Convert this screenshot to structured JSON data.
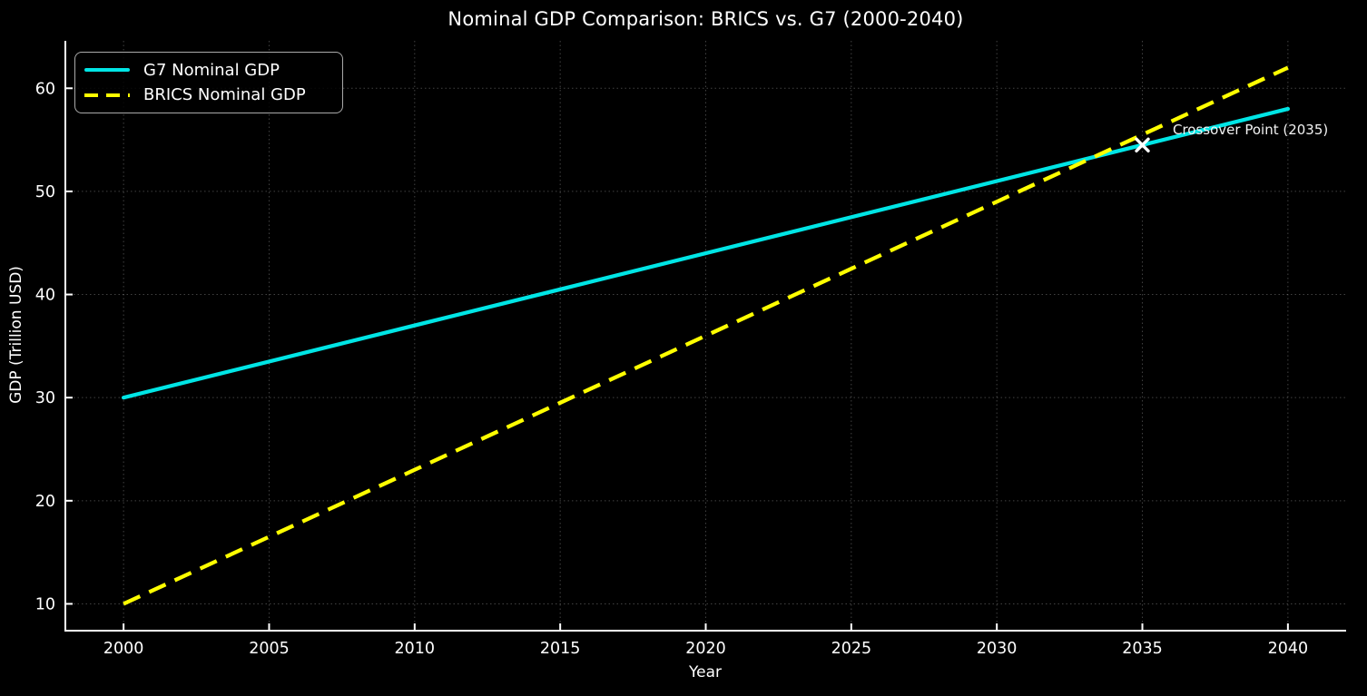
{
  "figure": {
    "background": "#000000",
    "text_color": "#ffffff"
  },
  "chart_data": {
    "type": "line",
    "title": "Nominal GDP Comparison: BRICS vs. G7 (2000-2040)",
    "xlabel": "Year",
    "ylabel": "GDP (Trillion USD)",
    "x": [
      2000,
      2005,
      2010,
      2015,
      2020,
      2025,
      2030,
      2035,
      2040
    ],
    "series": [
      {
        "name": "G7 Nominal GDP",
        "color": "#00e5e5",
        "line_style": "solid",
        "values": [
          30.0,
          33.5,
          37.0,
          40.5,
          44.0,
          47.5,
          51.0,
          54.5,
          58.0
        ]
      },
      {
        "name": "BRICS Nominal GDP",
        "color": "#ffff00",
        "line_style": "dashed",
        "values": [
          10.0,
          16.5,
          23.0,
          29.5,
          36.0,
          42.5,
          49.0,
          55.5,
          62.0
        ]
      }
    ],
    "annotation": {
      "label": "Crossover Point (2035)",
      "x": 2035,
      "y": 54.5,
      "marker": "x",
      "marker_color": "#ffffff"
    },
    "xticks": [
      2000,
      2005,
      2010,
      2015,
      2020,
      2025,
      2030,
      2035,
      2040
    ],
    "yticks": [
      10,
      20,
      30,
      40,
      50,
      60
    ],
    "xlim": [
      1998,
      2042
    ],
    "ylim": [
      7.4,
      64.6
    ],
    "grid": true,
    "grid_style": "dotted",
    "legend_position": "upper-left"
  }
}
